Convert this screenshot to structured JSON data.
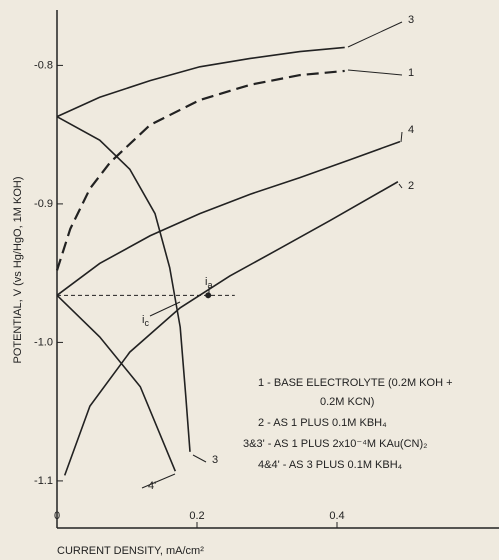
{
  "chart_data": {
    "type": "line",
    "ylabel": "POTENTIAL, V (vs Hg/HgO, 1M KOH)",
    "xlabel": "CURRENT DENSITY, mA/cm²",
    "xlim": [
      0,
      0.63
    ],
    "ylim": [
      -1.134,
      -0.76
    ],
    "xticks": [
      0,
      0.2,
      0.4
    ],
    "yticks": [
      -0.8,
      -0.9,
      {
        "value": -1,
        "label": "-1.0"
      },
      -1.1
    ],
    "series": [
      {
        "name": "3",
        "color": "#222222",
        "dashed": false,
        "x": [
          0,
          0.061,
          0.133,
          0.204,
          0.276,
          0.347,
          0.411
        ],
        "values": [
          -0.837,
          -0.823,
          -0.811,
          -0.801,
          -0.795,
          -0.79,
          -0.787
        ]
      },
      {
        "name": "1",
        "color": "#222222",
        "dashed": true,
        "x": [
          0,
          0.019,
          0.047,
          0.076,
          0.133,
          0.204,
          0.276,
          0.347,
          0.411
        ],
        "values": [
          -0.948,
          -0.918,
          -0.889,
          -0.87,
          -0.843,
          -0.825,
          -0.814,
          -0.807,
          -0.804
        ]
      },
      {
        "name": "4",
        "color": "#222222",
        "dashed": false,
        "x": [
          0,
          0.061,
          0.133,
          0.204,
          0.276,
          0.347,
          0.419,
          0.49
        ],
        "values": [
          -0.966,
          -0.943,
          -0.923,
          -0.907,
          -0.893,
          -0.881,
          -0.868,
          -0.855
        ]
      },
      {
        "name": "2",
        "color": "#222222",
        "dashed": false,
        "x": [
          0.011,
          0.047,
          0.104,
          0.176,
          0.247,
          0.319,
          0.39,
          0.487
        ],
        "values": [
          -1.096,
          -1.046,
          -1.007,
          -0.975,
          -0.952,
          -0.932,
          -0.912,
          -0.884
        ]
      },
      {
        "name": "3",
        "color": "#222222",
        "dashed": false,
        "x": [
          0,
          0.061,
          0.104,
          0.14,
          0.161,
          0.176,
          0.184,
          0.19
        ],
        "values": [
          -0.837,
          -0.854,
          -0.875,
          -0.907,
          -0.946,
          -0.989,
          -1.039,
          -1.079
        ]
      },
      {
        "name": "4'",
        "color": "#222222",
        "dashed": false,
        "x": [
          0,
          0.061,
          0.119,
          0.169
        ],
        "values": [
          -0.966,
          -0.996,
          -1.032,
          -1.093
        ]
      }
    ],
    "reference_line": {
      "y": -0.966,
      "x": [
        0,
        0.254
      ]
    },
    "point": {
      "x": 0.216,
      "y": -0.966
    },
    "annotations": [
      {
        "text": "i",
        "sub": "a"
      },
      {
        "text": "i",
        "sub": "c"
      }
    ],
    "legend": [
      "1 - BASE ELECTROLYTE (0.2M KOH +",
      "0.2M KCN)",
      "2 - AS 1 PLUS 0.1M KBH₄",
      "3&3' - AS 1 PLUS 2x10⁻⁴M KAu(CN)₂",
      "4&4' - AS 3 PLUS 0.1M KBH₄"
    ]
  }
}
